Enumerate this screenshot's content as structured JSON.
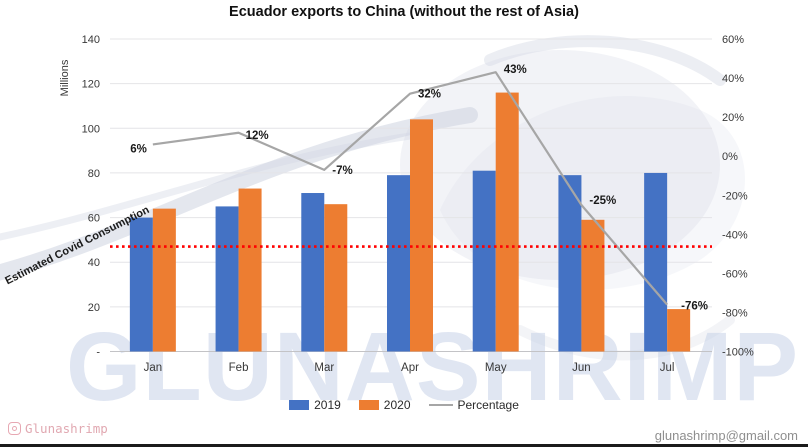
{
  "title": "Ecuador exports to China (without the rest of Asia)",
  "watermark": {
    "text": "GLUNASHRIMP"
  },
  "footer": {
    "handle": "Glunashrimp",
    "email": "glunashrimp@gmail.com"
  },
  "legend": {
    "items": [
      {
        "label": "2019",
        "type": "swatch",
        "color": "#4472C4"
      },
      {
        "label": "2020",
        "type": "swatch",
        "color": "#ED7D31"
      },
      {
        "label": "Percentage",
        "type": "line",
        "color": "#A6A6A6"
      }
    ]
  },
  "chart_data": {
    "type": "bar",
    "subtype": "combo-bar-line",
    "title": "Ecuador exports to China (without the rest of Asia)",
    "categories": [
      "Jan",
      "Feb",
      "Mar",
      "Apr",
      "May",
      "Jun",
      "Jul"
    ],
    "series": [
      {
        "name": "2019",
        "type": "bar",
        "axis": "left",
        "color": "#4472C4",
        "values": [
          60,
          65,
          71,
          79,
          81,
          79,
          80
        ]
      },
      {
        "name": "2020",
        "type": "bar",
        "axis": "left",
        "color": "#ED7D31",
        "values": [
          64,
          73,
          66,
          104,
          116,
          59,
          19
        ]
      },
      {
        "name": "Percentage",
        "type": "line",
        "axis": "right",
        "color": "#A6A6A6",
        "values": [
          6,
          12,
          -7,
          32,
          43,
          -25,
          -76
        ],
        "labels": [
          "6%",
          "12%",
          "-7%",
          "32%",
          "43%",
          "-25%",
          "-76%"
        ]
      }
    ],
    "left_axis": {
      "label": "Millions",
      "min": 0,
      "max": 140,
      "tick_step": 20,
      "tick_labels": [
        "-",
        "20",
        "40",
        "60",
        "80",
        "100",
        "120",
        "140"
      ]
    },
    "right_axis": {
      "min": -100,
      "max": 60,
      "tick_step": 20,
      "tick_labels": [
        "-100%",
        "-80%",
        "-60%",
        "-40%",
        "-20%",
        "0%",
        "20%",
        "40%",
        "60%"
      ]
    },
    "reference_line": {
      "label": "Estimated Covid Consumption",
      "value": 47,
      "color": "#FF0000",
      "style": "dotted"
    },
    "grid": true,
    "legend_position": "bottom"
  }
}
